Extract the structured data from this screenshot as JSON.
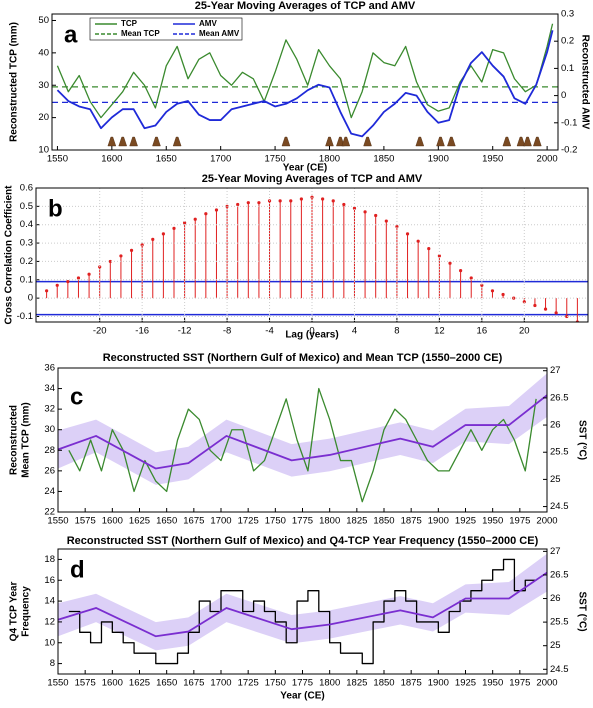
{
  "chart_data": [
    {
      "type": "line",
      "label": "a",
      "title": "25-Year Moving Averages of TCP and AMV",
      "xlabel": "Year (CE)",
      "ylabel": [
        "Reconstructed TCP (mm)"
      ],
      "y2label": "Reconstructed AMV",
      "x": [
        1550,
        1560,
        1570,
        1580,
        1590,
        1600,
        1610,
        1620,
        1630,
        1640,
        1650,
        1660,
        1670,
        1680,
        1690,
        1700,
        1710,
        1720,
        1730,
        1740,
        1750,
        1760,
        1770,
        1780,
        1790,
        1800,
        1810,
        1820,
        1830,
        1840,
        1850,
        1860,
        1870,
        1880,
        1890,
        1900,
        1910,
        1920,
        1930,
        1940,
        1950,
        1960,
        1970,
        1980,
        1990,
        2000,
        2005
      ],
      "xlim": [
        1545,
        2010
      ],
      "xticks": [
        1550,
        1600,
        1650,
        1700,
        1750,
        1800,
        1850,
        1900,
        1950,
        2000
      ],
      "ylim": [
        10,
        52
      ],
      "yticks": [
        10,
        20,
        30,
        40,
        50
      ],
      "y2lim": [
        -0.2,
        0.3
      ],
      "y2ticks": [
        -0.2,
        -0.1,
        0,
        0.1,
        0.2,
        0.3
      ],
      "legend": "upper left",
      "series": [
        {
          "name": "TCP",
          "color": "#3a8a2e",
          "values": [
            36,
            28,
            33,
            25,
            20,
            24,
            28,
            34,
            30,
            23,
            36,
            42,
            32,
            38,
            40,
            33,
            30,
            34,
            32,
            25,
            34,
            44,
            38,
            30,
            41,
            36,
            32,
            20,
            28,
            40,
            37,
            36,
            42,
            31,
            24,
            22,
            23,
            31,
            36,
            31,
            41,
            40,
            32,
            28,
            30,
            42,
            49
          ]
        },
        {
          "name": "AMV",
          "color": "#1f2ad8",
          "axis": "y2",
          "values": [
            0.02,
            -0.02,
            -0.04,
            -0.05,
            -0.12,
            -0.08,
            -0.05,
            -0.05,
            -0.12,
            -0.11,
            -0.06,
            -0.03,
            -0.02,
            -0.07,
            -0.09,
            -0.09,
            -0.05,
            -0.04,
            -0.03,
            -0.02,
            -0.04,
            -0.03,
            -0.01,
            0.02,
            0.04,
            0.03,
            -0.06,
            -0.14,
            -0.15,
            -0.11,
            -0.06,
            -0.03,
            0.01,
            0,
            -0.06,
            -0.1,
            -0.09,
            0.04,
            0.12,
            0.16,
            0.11,
            0.07,
            -0.01,
            -0.03,
            0.04,
            0.16,
            0.24
          ]
        }
      ],
      "means": [
        {
          "name": "Mean TCP",
          "color": "#3a8a2e",
          "value": 29.5
        },
        {
          "name": "Mean AMV",
          "color": "#1f2ad8",
          "axis": "y2",
          "value": -0.025
        }
      ],
      "eruptions": [
        1600,
        1610,
        1620,
        1641,
        1660,
        1760,
        1800,
        1810,
        1815,
        1835,
        1883,
        1902,
        1912,
        1963,
        1976,
        1982,
        1991
      ]
    },
    {
      "type": "stem",
      "title": "25-Year Moving Averages of TCP and AMV",
      "label": "b",
      "xlabel": "Lag (years)",
      "ylabel": [
        "Cross Correlation Coefficient"
      ],
      "color": "#e02020",
      "grid": true,
      "x": [
        -25,
        -24,
        -23,
        -22,
        -21,
        -20,
        -19,
        -18,
        -17,
        -16,
        -15,
        -14,
        -13,
        -12,
        -11,
        -10,
        -9,
        -8,
        -7,
        -6,
        -5,
        -4,
        -3,
        -2,
        -1,
        0,
        1,
        2,
        3,
        4,
        5,
        6,
        7,
        8,
        9,
        10,
        11,
        12,
        13,
        14,
        15,
        16,
        17,
        18,
        19,
        20,
        21,
        22,
        23,
        24,
        25
      ],
      "values": [
        0.04,
        0.07,
        0.09,
        0.11,
        0.13,
        0.17,
        0.2,
        0.23,
        0.26,
        0.29,
        0.32,
        0.35,
        0.38,
        0.41,
        0.43,
        0.46,
        0.48,
        0.5,
        0.51,
        0.52,
        0.52,
        0.53,
        0.53,
        0.53,
        0.54,
        0.55,
        0.54,
        0.53,
        0.51,
        0.49,
        0.47,
        0.45,
        0.42,
        0.39,
        0.35,
        0.31,
        0.27,
        0.23,
        0.19,
        0.15,
        0.11,
        0.07,
        0.04,
        0.02,
        0,
        -0.02,
        -0.04,
        -0.06,
        -0.08,
        -0.1,
        -0.13
      ],
      "xlim": [
        -26,
        26
      ],
      "xticks": [
        -20,
        -16,
        -12,
        -8,
        -4,
        0,
        4,
        8,
        12,
        16,
        20
      ],
      "ylim": [
        -0.13,
        0.6
      ],
      "yticks": [
        -0.1,
        0,
        0.1,
        0.2,
        0.3,
        0.4,
        0.5,
        0.6
      ],
      "significance": {
        "color": "#1f2ad8",
        "values": [
          0.09,
          -0.09
        ]
      }
    },
    {
      "type": "line",
      "label": "c",
      "title": "Reconstructed SST (Northern Gulf of Mexico) and Mean TCP (1550–2000 CE)",
      "ylabel": [
        "Reconstructed",
        "Mean TCP (mm)"
      ],
      "y2label": "SST (°C)",
      "xlim": [
        1550,
        2000
      ],
      "xticks": [
        1550,
        1575,
        1600,
        1625,
        1650,
        1675,
        1700,
        1725,
        1750,
        1775,
        1800,
        1825,
        1850,
        1875,
        1900,
        1925,
        1950,
        1975,
        2000
      ],
      "ylim": [
        22,
        36
      ],
      "yticks": [
        22,
        24,
        26,
        28,
        30,
        32,
        34,
        36
      ],
      "y2lim": [
        24.4,
        27.05
      ],
      "y2ticks": [
        24.5,
        25,
        25.5,
        26,
        26.5,
        27
      ],
      "band": {
        "color": "#dcd0f7",
        "x": [
          1550,
          1585,
          1640,
          1670,
          1705,
          1765,
          1800,
          1865,
          1895,
          1925,
          1965,
          2000
        ],
        "upper": [
          25.9,
          26.1,
          25.5,
          25.6,
          26.1,
          25.65,
          25.75,
          26.05,
          25.9,
          26.3,
          26.35,
          26.95
        ],
        "lower": [
          25.2,
          25.5,
          24.9,
          25.0,
          25.5,
          25.05,
          25.15,
          25.45,
          25.3,
          25.7,
          25.65,
          26.15
        ]
      },
      "series": [
        {
          "color": "#3a8a2e",
          "x": [
            1560,
            1570,
            1580,
            1590,
            1600,
            1610,
            1620,
            1630,
            1640,
            1650,
            1660,
            1670,
            1680,
            1690,
            1700,
            1710,
            1720,
            1730,
            1740,
            1750,
            1760,
            1770,
            1780,
            1790,
            1800,
            1810,
            1820,
            1830,
            1840,
            1850,
            1860,
            1870,
            1880,
            1890,
            1900,
            1910,
            1920,
            1930,
            1940,
            1950,
            1960,
            1970,
            1980,
            1990
          ],
          "values": [
            28,
            26,
            29,
            26,
            30,
            28,
            24,
            27,
            25,
            24,
            29,
            32,
            31,
            28,
            27,
            30,
            30,
            26,
            27,
            30,
            33,
            29,
            26,
            34,
            31,
            27,
            27,
            23,
            26,
            30,
            32,
            31,
            29,
            27,
            26,
            26,
            28,
            30,
            28,
            30,
            31,
            29,
            26,
            33
          ]
        },
        {
          "color": "#7a2ed0",
          "axis": "y2",
          "x": [
            1550,
            1585,
            1640,
            1670,
            1705,
            1765,
            1800,
            1865,
            1895,
            1925,
            1965,
            2000
          ],
          "values": [
            25.55,
            25.8,
            25.2,
            25.3,
            25.8,
            25.35,
            25.45,
            25.75,
            25.6,
            26.0,
            26.0,
            26.55
          ]
        }
      ]
    },
    {
      "type": "line",
      "label": "d",
      "title": "Reconstructed SST (Northern Gulf of Mexico) and Q4-TCP Year Frequency (1550–2000 CE)",
      "xlabel": "Year (CE)",
      "ylabel": [
        "Q4 TCP Year",
        "Frequency"
      ],
      "y2label": "SST (°C)",
      "xlim": [
        1550,
        2000
      ],
      "xticks": [
        1550,
        1575,
        1600,
        1625,
        1650,
        1675,
        1700,
        1725,
        1750,
        1775,
        1800,
        1825,
        1850,
        1875,
        1900,
        1925,
        1950,
        1975,
        2000
      ],
      "ylim": [
        7,
        19
      ],
      "yticks": [
        8,
        10,
        12,
        14,
        16,
        18
      ],
      "y2lim": [
        24.4,
        27.05
      ],
      "y2ticks": [
        24.5,
        25,
        25.5,
        26,
        26.5,
        27
      ],
      "band": {
        "color": "#dcd0f7",
        "x": [
          1550,
          1585,
          1640,
          1670,
          1705,
          1765,
          1800,
          1865,
          1895,
          1925,
          1965,
          2000
        ],
        "upper": [
          25.9,
          26.1,
          25.5,
          25.6,
          26.1,
          25.65,
          25.75,
          26.05,
          25.9,
          26.3,
          26.35,
          26.95
        ],
        "lower": [
          25.2,
          25.5,
          24.9,
          25.0,
          25.5,
          25.05,
          25.15,
          25.45,
          25.3,
          25.7,
          25.65,
          26.15
        ]
      },
      "series": [
        {
          "color": "#000000",
          "drawstyle": "steps",
          "x": [
            1560,
            1570,
            1580,
            1590,
            1600,
            1610,
            1620,
            1630,
            1640,
            1650,
            1660,
            1670,
            1680,
            1690,
            1700,
            1710,
            1720,
            1730,
            1740,
            1750,
            1760,
            1770,
            1780,
            1790,
            1800,
            1810,
            1820,
            1830,
            1840,
            1850,
            1860,
            1870,
            1880,
            1890,
            1900,
            1910,
            1920,
            1930,
            1940,
            1950,
            1960,
            1970,
            1980,
            1990
          ],
          "values": [
            13,
            11,
            10,
            12,
            11,
            10,
            9,
            9,
            8,
            8,
            9,
            11,
            14,
            13,
            15,
            15,
            13,
            14,
            13,
            12,
            10,
            14,
            15,
            13,
            10,
            9,
            9,
            8,
            12,
            14,
            15,
            14,
            12,
            12,
            11,
            13,
            14,
            15,
            16,
            17,
            18,
            15,
            16,
            16
          ]
        },
        {
          "color": "#7a2ed0",
          "axis": "y2",
          "x": [
            1550,
            1585,
            1640,
            1670,
            1705,
            1765,
            1800,
            1865,
            1895,
            1925,
            1965,
            2000
          ],
          "values": [
            25.55,
            25.8,
            25.2,
            25.3,
            25.8,
            25.35,
            25.45,
            25.75,
            25.6,
            26.0,
            26.0,
            26.55
          ]
        }
      ]
    }
  ]
}
